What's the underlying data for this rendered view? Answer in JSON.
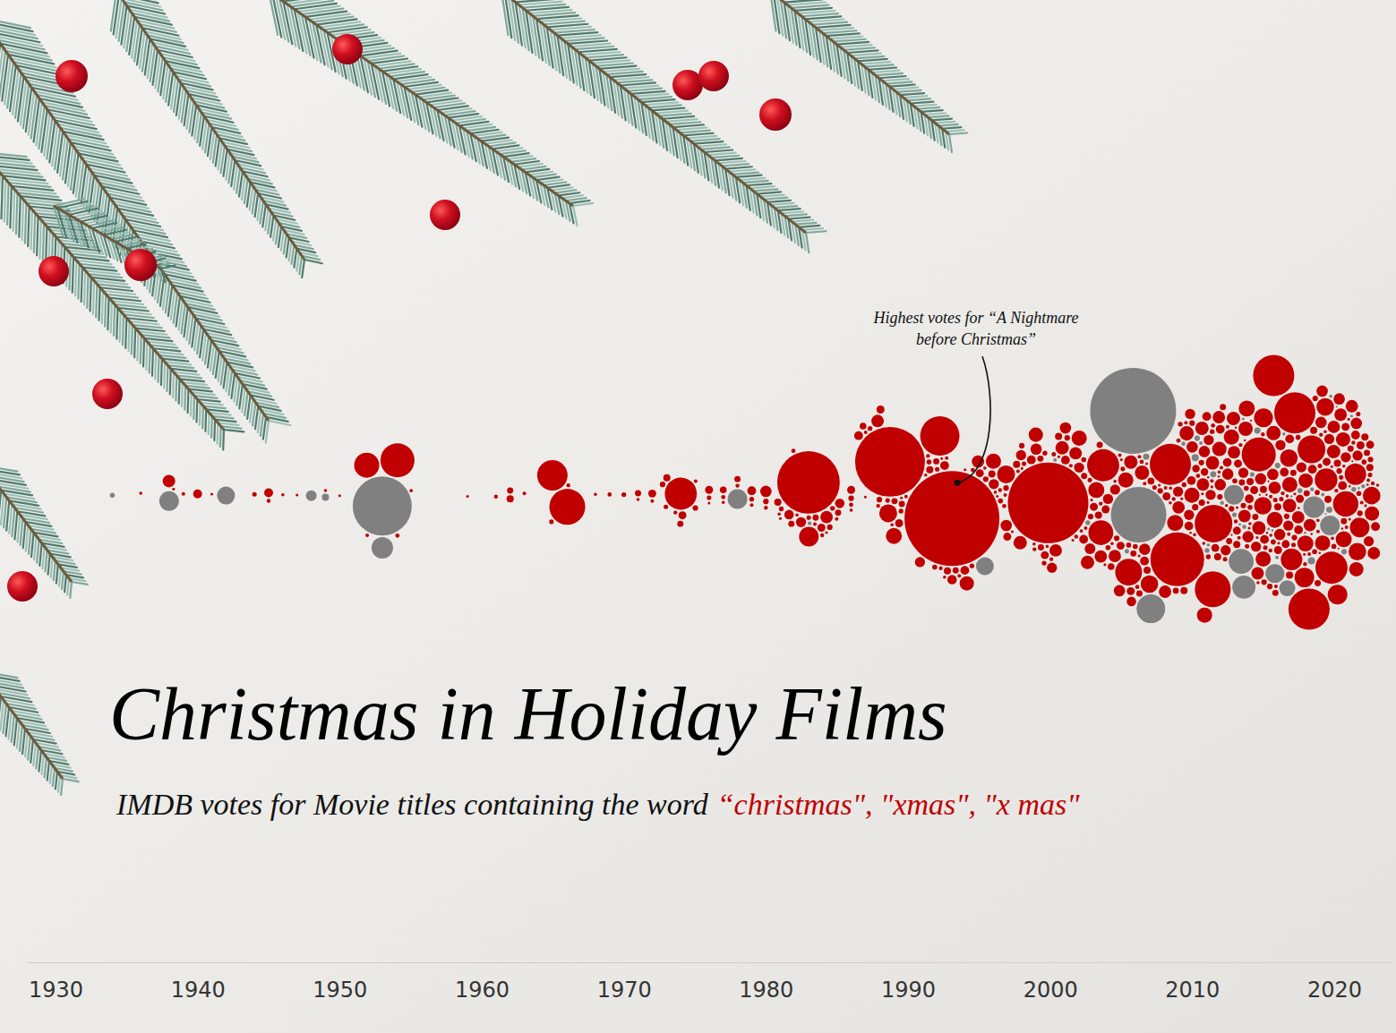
{
  "chart_data": {
    "type": "beeswarm",
    "title": "Christmas in Holiday Films",
    "subtitle": [
      "IMDB votes for Movie titles containing the word",
      "“christmas\", \"xmas\", \"x mas\""
    ],
    "annotations": [
      {
        "text": [
          "Highest votes for “A Nightmare",
          "before Christmas”"
        ]
      }
    ],
    "xlim": [
      1928,
      2024
    ],
    "xticks": [
      1930,
      1940,
      1950,
      1960,
      1970,
      1980,
      1990,
      2000,
      2010,
      2020
    ],
    "series": [
      {
        "color": "#c00000",
        "x": [
          1936,
          1938,
          1938,
          1939,
          1940,
          1941,
          1944,
          1945,
          1945,
          1946,
          1947,
          1949,
          1950,
          1952,
          1952,
          1954,
          1954,
          1955,
          1959,
          1961,
          1962,
          1962,
          1963,
          1965,
          1965,
          1966,
          1966,
          1968,
          1969,
          1970,
          1971,
          1971,
          1972,
          1972,
          1973,
          1973,
          1973,
          1974,
          1974,
          1974,
          1974,
          1975,
          1975,
          1976,
          1976,
          1976,
          1977,
          1977,
          1977,
          1978,
          1978,
          1979,
          1979,
          1979,
          1980,
          1980,
          1980,
          1981,
          1981,
          1981,
          1981,
          1982,
          1982,
          1982,
          1982,
          1983,
          1983,
          1983,
          1983,
          1983,
          1983,
          1984,
          1984,
          1984,
          1984,
          1984,
          1985,
          1985,
          1985,
          1985,
          1986,
          1986,
          1986,
          1986,
          1987,
          1987,
          1987,
          1987,
          1987,
          1988,
          1988,
          1988,
          1988,
          1989,
          1989,
          1989,
          1989,
          1989,
          1989,
          1990,
          1990,
          1990,
          1990,
          1990,
          1991,
          1991,
          1991,
          1991,
          1991,
          1992,
          1992,
          1992,
          1992,
          1992,
          1992,
          1993,
          1993,
          1993,
          1993,
          1993,
          1993,
          1994,
          1994,
          1994,
          1994,
          1994,
          1994,
          1995,
          1995,
          1995,
          1995,
          1995,
          1996,
          1996,
          1996,
          1996,
          1996,
          1996,
          1996,
          1997,
          1997,
          1997,
          1997,
          1997,
          1997,
          1997,
          1998,
          1998,
          1998,
          1998,
          1998,
          1998,
          1998,
          1999,
          1999,
          1999,
          1999,
          1999,
          1999,
          1999,
          2000,
          2000,
          2000,
          2000,
          2000,
          2000,
          2000,
          2000,
          2001,
          2001,
          2001,
          2001,
          2001,
          2001,
          2001,
          2001,
          2002,
          2002,
          2002,
          2002,
          2002,
          2002,
          2002,
          2002,
          2002,
          2003,
          2003,
          2003,
          2003,
          2003,
          2003,
          2003,
          2003,
          2003,
          2004,
          2004,
          2004,
          2004,
          2004,
          2004,
          2004,
          2004,
          2004,
          2004,
          2005,
          2005,
          2005,
          2005,
          2005,
          2005,
          2005,
          2005,
          2005,
          2005,
          2006,
          2006,
          2006,
          2006,
          2006,
          2006,
          2006,
          2006,
          2006,
          2006,
          2007,
          2007,
          2007,
          2007,
          2007,
          2007,
          2007,
          2007,
          2007,
          2007,
          2008,
          2008,
          2008,
          2008,
          2008,
          2008,
          2008,
          2008,
          2008,
          2008,
          2008,
          2009,
          2009,
          2009,
          2009,
          2009,
          2009,
          2009,
          2009,
          2009,
          2009,
          2009,
          2010,
          2010,
          2010,
          2010,
          2010,
          2010,
          2010,
          2010,
          2010,
          2010,
          2010,
          2010,
          2010,
          2010,
          2011,
          2011,
          2011,
          2011,
          2011,
          2011,
          2011,
          2011,
          2011,
          2011,
          2011,
          2011,
          2011,
          2011,
          2011,
          2011,
          2012,
          2012,
          2012,
          2012,
          2012,
          2012,
          2012,
          2012,
          2012,
          2012,
          2012,
          2012,
          2012,
          2012,
          2012,
          2012,
          2013,
          2013,
          2013,
          2013,
          2013,
          2013,
          2013,
          2013,
          2013,
          2013,
          2013,
          2013,
          2013,
          2013,
          2013,
          2013,
          2013,
          2013,
          2014,
          2014,
          2014,
          2014,
          2014,
          2014,
          2014,
          2014,
          2014,
          2014,
          2014,
          2014,
          2014,
          2014,
          2014,
          2014,
          2014,
          2014,
          2015,
          2015,
          2015,
          2015,
          2015,
          2015,
          2015,
          2015,
          2015,
          2015,
          2015,
          2015,
          2015,
          2015,
          2015,
          2015,
          2015,
          2015,
          2015,
          2015,
          2016,
          2016,
          2016,
          2016,
          2016,
          2016,
          2016,
          2016,
          2016,
          2016,
          2016,
          2016,
          2016,
          2016,
          2016,
          2016,
          2016,
          2016,
          2016,
          2016,
          2017,
          2017,
          2017,
          2017,
          2017,
          2017,
          2017,
          2017,
          2017,
          2017,
          2017,
          2017,
          2017,
          2017,
          2017,
          2017,
          2017,
          2017,
          2017,
          2017,
          2018,
          2018,
          2018,
          2018,
          2018,
          2018,
          2018,
          2018,
          2018,
          2018,
          2018,
          2018,
          2018,
          2018,
          2018,
          2018,
          2018,
          2018,
          2018,
          2018,
          2019,
          2019,
          2019,
          2019,
          2019,
          2019,
          2019,
          2019,
          2019,
          2019,
          2019,
          2019,
          2019,
          2019,
          2019,
          2019,
          2019,
          2019,
          2019,
          2019,
          2020,
          2020,
          2020,
          2020,
          2020,
          2020,
          2020,
          2020,
          2020,
          2020,
          2020,
          2020,
          2020,
          2020,
          2020,
          2020,
          2020,
          2020,
          2020,
          2020,
          2021,
          2021,
          2021,
          2021,
          2021,
          2021,
          2021,
          2021,
          2021,
          2021,
          2021,
          2021,
          2021,
          2021,
          2021,
          2021,
          2021,
          2021,
          2021,
          2021,
          2022,
          2022,
          2022,
          2022,
          2022,
          2022,
          2022,
          2022,
          2022,
          2022,
          2022,
          2022,
          2022,
          2022,
          2022,
          2022
        ],
        "values": [
          400,
          6100,
          300,
          500,
          3100,
          300,
          800,
          3100,
          600,
          400,
          300,
          400,
          300,
          24400,
          500,
          45000,
          700,
          400,
          300,
          600,
          2000,
          1500,
          500,
          36000,
          800,
          50000,
          600,
          400,
          700,
          900,
          1500,
          400,
          2500,
          500,
          2000,
          1200,
          800,
          40000,
          2500,
          1500,
          600,
          1200,
          500,
          2500,
          800,
          300,
          1800,
          700,
          400,
          1500,
          600,
          3000,
          900,
          500,
          5000,
          1200,
          600,
          2000,
          900,
          400,
          300,
          3500,
          1500,
          700,
          400,
          152000,
          15000,
          4000,
          1500,
          800,
          500,
          6000,
          2500,
          1200,
          600,
          300,
          3500,
          1500,
          900,
          500,
          2500,
          1200,
          700,
          400,
          3000,
          1800,
          900,
          500,
          300,
          6000,
          2500,
          1200,
          600,
          189000,
          12500,
          10000,
          1500,
          800,
          400,
          2500,
          1500,
          900,
          500,
          300,
          4000,
          2000,
          1000,
          600,
          400,
          60000,
          3000,
          1500,
          800,
          500,
          300,
          350000,
          3500,
          2000,
          1000,
          600,
          400,
          8000,
          3000,
          1500,
          900,
          500,
          300,
          6000,
          2500,
          1200,
          700,
          400,
          9000,
          4000,
          2000,
          1000,
          600,
          400,
          300,
          12500,
          5000,
          2500,
          1200,
          700,
          500,
          300,
          7000,
          4000,
          2000,
          1200,
          800,
          500,
          300,
          8000,
          5000,
          3000,
          1500,
          900,
          600,
          400,
          252000,
          6000,
          4000,
          2500,
          1500,
          900,
          600,
          400,
          7000,
          5000,
          3000,
          2000,
          1200,
          800,
          500,
          300,
          9000,
          6000,
          4000,
          2500,
          1500,
          1000,
          600,
          400,
          300,
          10000,
          7000,
          4500,
          3000,
          2000,
          1200,
          800,
          500,
          300,
          40000,
          24000,
          6000,
          4000,
          2500,
          1500,
          1000,
          600,
          400,
          300,
          9000,
          6000,
          4000,
          2500,
          1800,
          1200,
          800,
          500,
          400,
          300,
          28000,
          7000,
          5000,
          3500,
          2500,
          1500,
          1000,
          700,
          500,
          300,
          12000,
          8000,
          5000,
          3000,
          2000,
          1500,
          1000,
          700,
          500,
          300,
          66000,
          10000,
          6000,
          4000,
          2500,
          1800,
          1200,
          800,
          500,
          400,
          300,
          112000,
          9000,
          6000,
          4000,
          3000,
          2000,
          1400,
          900,
          600,
          400,
          300,
          8000,
          6000,
          5000,
          4000,
          3000,
          2200,
          1600,
          1200,
          900,
          700,
          500,
          400,
          300,
          200,
          55000,
          50000,
          9000,
          7000,
          5000,
          4000,
          3000,
          2200,
          1600,
          1200,
          900,
          700,
          500,
          400,
          300,
          200,
          8000,
          7000,
          6000,
          5000,
          4000,
          3000,
          2500,
          2000,
          1500,
          1200,
          900,
          700,
          500,
          400,
          300,
          200,
          9000,
          7000,
          6000,
          5000,
          4000,
          3000,
          2500,
          2000,
          1500,
          1200,
          1000,
          800,
          600,
          500,
          400,
          300,
          200,
          150,
          10000,
          8000,
          6000,
          5000,
          4000,
          3000,
          2500,
          2000,
          1500,
          1200,
          1000,
          800,
          600,
          500,
          400,
          300,
          200,
          150,
          45000,
          12000,
          9000,
          7000,
          6000,
          5000,
          4000,
          3000,
          2500,
          2000,
          1500,
          1200,
          1000,
          800,
          600,
          500,
          400,
          300,
          200,
          150,
          66000,
          14000,
          10000,
          8000,
          6000,
          5000,
          4000,
          3000,
          2500,
          2000,
          1500,
          1200,
          1000,
          800,
          600,
          500,
          400,
          300,
          200,
          150,
          66000,
          18000,
          12000,
          9000,
          7000,
          6000,
          5000,
          4000,
          3000,
          2500,
          2000,
          1500,
          1200,
          1000,
          800,
          600,
          500,
          400,
          300,
          200,
          66000,
          30000,
          15000,
          10000,
          8000,
          6000,
          5000,
          4000,
          3000,
          2500,
          2000,
          1500,
          1200,
          1000,
          800,
          600,
          500,
          400,
          300,
          200,
          40000,
          20000,
          12000,
          9000,
          7000,
          6000,
          5000,
          4000,
          3000,
          2500,
          2000,
          1500,
          1200,
          1000,
          800,
          600,
          500,
          400,
          300,
          200,
          25000,
          15000,
          10000,
          8000,
          6000,
          5000,
          4000,
          3000,
          2500,
          2000,
          1500,
          1200,
          1000,
          800,
          600,
          500,
          400,
          300,
          200,
          150,
          18000,
          15000,
          12000,
          8000,
          6000,
          5000,
          4000,
          3000,
          2500,
          2000,
          1500,
          1200,
          1000,
          800,
          600,
          500,
          400,
          300,
          200,
          150,
          12000,
          8000,
          6000,
          4000,
          3000,
          2500,
          2000,
          1500,
          1200,
          1000,
          800,
          600,
          500,
          400,
          300,
          200
        ]
      },
      {
        "color": "#808080",
        "x": [
          1934,
          1938,
          1942,
          1948,
          1949,
          1953,
          1953,
          1978,
          1983,
          1995,
          2001,
          2003,
          2006,
          2006,
          2007,
          2007,
          2007,
          2009,
          2009,
          2010,
          2010,
          2011,
          2011,
          2012,
          2012,
          2013,
          2013,
          2013,
          2014,
          2014,
          2014,
          2014,
          2015,
          2015,
          2015,
          2016,
          2016,
          2016,
          2016,
          2017,
          2017,
          2017,
          2017,
          2018,
          2018,
          2018,
          2018,
          2019,
          2019,
          2019,
          2019,
          2020,
          2020,
          2020,
          2021,
          2021,
          2022,
          2022
        ],
        "values": [
          900,
          15000,
          12500,
          4500,
          2000,
          135600,
          18000,
          15000,
          600,
          12500,
          500,
          900,
          287000,
          800,
          120000,
          32000,
          1500,
          2000,
          700,
          1200,
          500,
          900,
          400,
          1500,
          600,
          15000,
          800,
          300,
          24000,
          21000,
          700,
          300,
          1500,
          800,
          300,
          14000,
          1200,
          500,
          200,
          10000,
          1000,
          400,
          200,
          18000,
          2000,
          600,
          200,
          15000,
          1500,
          500,
          150,
          1200,
          400,
          150,
          900,
          300,
          600,
          200
        ]
      }
    ]
  }
}
